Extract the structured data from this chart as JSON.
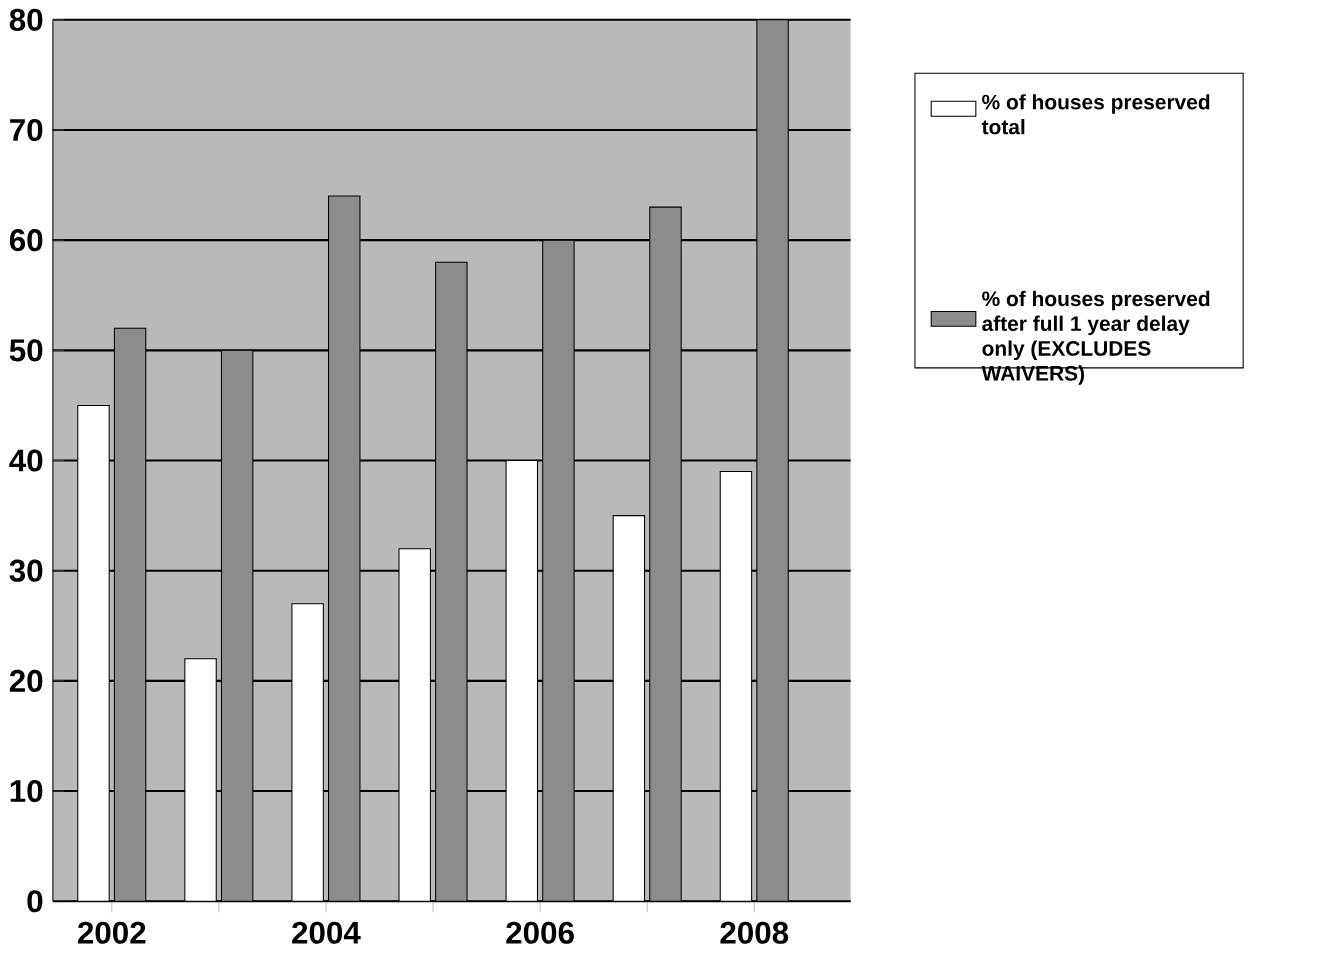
{
  "chart_data": {
    "type": "bar",
    "categories": [
      "2002",
      null,
      "2004",
      null,
      "2006",
      null,
      "2008"
    ],
    "series": [
      {
        "name": "% of houses preserved total",
        "color": "#ffffff",
        "values": [
          45,
          22,
          27,
          32,
          40,
          35,
          39
        ]
      },
      {
        "name": "% of houses preserved after full 1 year delay only (EXCLUDES WAIVERS)",
        "color": "#8c8c8c",
        "values": [
          52,
          50,
          64,
          58,
          60,
          63,
          80
        ]
      }
    ],
    "ylim": [
      0,
      80
    ],
    "yticks": [
      0,
      10,
      20,
      30,
      40,
      50,
      60,
      70,
      80
    ],
    "grid": "y",
    "legend": "right"
  }
}
